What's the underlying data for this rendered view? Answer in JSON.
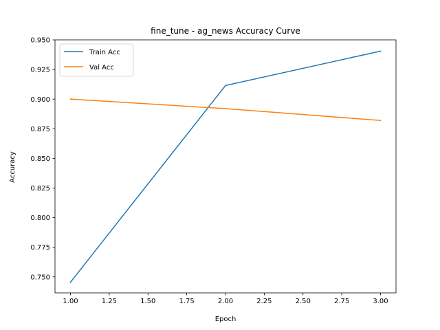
{
  "chart_data": {
    "type": "line",
    "title": "fine_tune - ag_news Accuracy Curve",
    "xlabel": "Epoch",
    "ylabel": "Accuracy",
    "x": [
      1,
      2,
      3
    ],
    "xlim": [
      0.9,
      3.1
    ],
    "ylim": [
      0.7365,
      0.95
    ],
    "xticks": [
      1.0,
      1.25,
      1.5,
      1.75,
      2.0,
      2.25,
      2.5,
      2.75,
      3.0
    ],
    "xtick_labels": [
      "1.00",
      "1.25",
      "1.50",
      "1.75",
      "2.00",
      "2.25",
      "2.50",
      "2.75",
      "3.00"
    ],
    "yticks": [
      0.75,
      0.775,
      0.8,
      0.825,
      0.85,
      0.875,
      0.9,
      0.925,
      0.95
    ],
    "ytick_labels": [
      "0.750",
      "0.775",
      "0.800",
      "0.825",
      "0.850",
      "0.875",
      "0.900",
      "0.925",
      "0.950"
    ],
    "grid": false,
    "legend_position": "upper-left",
    "series": [
      {
        "name": "Train Acc",
        "color": "#1f77b4",
        "values": [
          0.7455,
          0.9115,
          0.9405
        ]
      },
      {
        "name": "Val Acc",
        "color": "#ff7f0e",
        "values": [
          0.9,
          0.892,
          0.882
        ]
      }
    ]
  }
}
